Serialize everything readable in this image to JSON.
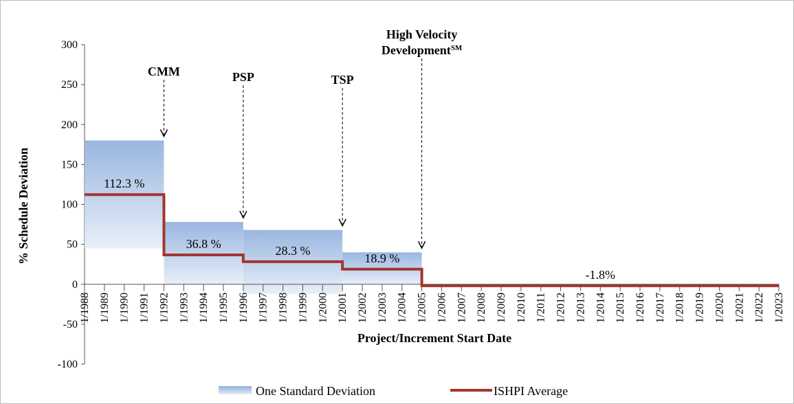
{
  "chart_data": {
    "type": "step",
    "ylabel": "% Schedule Deviation",
    "xlabel": "Project/Increment Start Date",
    "ylim": [
      -100,
      300
    ],
    "yticks": [
      -100,
      -50,
      0,
      50,
      100,
      150,
      200,
      250,
      300
    ],
    "categories": [
      "1/1988",
      "1/1989",
      "1/1990",
      "1/1991",
      "1/1992",
      "1/1993",
      "1/1994",
      "1/1995",
      "1/1996",
      "1/1997",
      "1/1998",
      "1/1999",
      "1/2000",
      "1/2001",
      "1/2002",
      "1/2003",
      "1/2004",
      "1/2005",
      "1/2006",
      "1/2007",
      "1/2008",
      "1/2009",
      "1/2010",
      "1/2011",
      "1/2012",
      "1/2013",
      "1/2014",
      "1/2015",
      "1/2016",
      "1/2017",
      "1/2018",
      "1/2019",
      "1/2020",
      "1/2021",
      "1/2022",
      "1/2023"
    ],
    "series": [
      {
        "name": "One Standard Deviation",
        "color": "#8eaedc"
      },
      {
        "name": "ISHPI Average",
        "color": "#a33530"
      }
    ],
    "segments": [
      {
        "start": "1/1988",
        "end": "1/1992",
        "value": 112.3,
        "value_label": "112.3 %",
        "band": [
          45,
          180
        ]
      },
      {
        "start": "1/1992",
        "end": "1/1996",
        "value": 36.8,
        "value_label": "36.8 %",
        "band": [
          0,
          78
        ]
      },
      {
        "start": "1/1996",
        "end": "1/2001",
        "value": 28.3,
        "value_label": "28.3 %",
        "band": [
          -12,
          68
        ]
      },
      {
        "start": "1/2001",
        "end": "1/2005",
        "value": 18.9,
        "value_label": "18.9 %",
        "band": [
          0,
          40
        ]
      },
      {
        "start": "1/2005",
        "end": "1/2023",
        "value": -1.8,
        "value_label": "-1.8%",
        "band": [
          -4,
          0
        ]
      }
    ],
    "annotations": [
      {
        "at": "1/1992",
        "lines": [
          "CMM"
        ]
      },
      {
        "at": "1/1996",
        "lines": [
          "PSP"
        ]
      },
      {
        "at": "1/2001",
        "lines": [
          "TSP"
        ]
      },
      {
        "at": "1/2005",
        "lines": [
          "High Velocity",
          "Development"
        ],
        "superscript": "SM"
      }
    ]
  }
}
